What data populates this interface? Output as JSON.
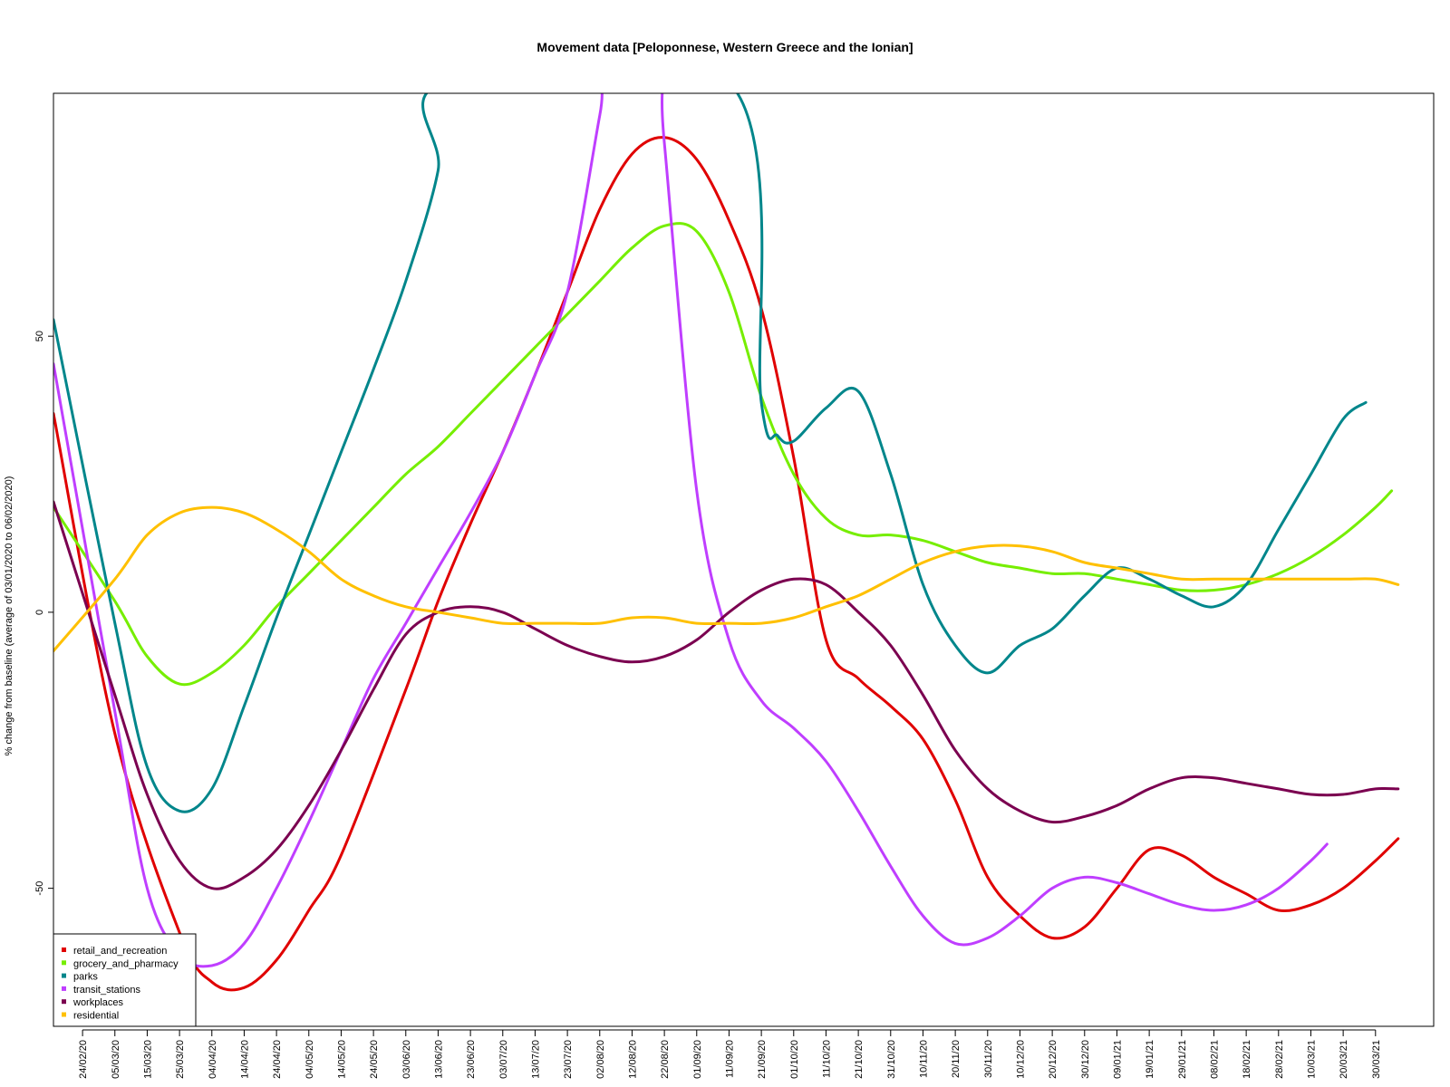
{
  "chart_data": {
    "type": "line",
    "title": "Movement data [Peloponnese, Western Greece and the Ionian]",
    "xlabel": "",
    "ylabel": "% change from baseline (average of 03/01/2020 to 06/02/2020)",
    "ylim": [
      -75,
      94
    ],
    "yticks": [
      -50,
      0,
      50
    ],
    "x_ticks": [
      "24/02/20",
      "05/03/20",
      "15/03/20",
      "25/03/20",
      "04/04/20",
      "14/04/20",
      "24/04/20",
      "04/05/20",
      "14/05/20",
      "24/05/20",
      "03/06/20",
      "13/06/20",
      "23/06/20",
      "03/07/20",
      "13/07/20",
      "23/07/20",
      "02/08/20",
      "12/08/20",
      "22/08/20",
      "01/09/20",
      "11/09/20",
      "21/09/20",
      "01/10/20",
      "11/10/20",
      "21/10/20",
      "31/10/20",
      "10/11/20",
      "20/11/20",
      "30/11/20",
      "10/12/20",
      "20/12/20",
      "30/12/20",
      "09/01/21",
      "19/01/21",
      "29/01/21",
      "08/02/21",
      "18/02/21",
      "28/02/21",
      "10/03/21",
      "20/03/21",
      "30/03/21"
    ],
    "legend": {
      "position": "bottom-left",
      "entries": [
        "retail_and_recreation",
        "grocery_and_pharmacy",
        "parks",
        "transit_stations",
        "workplaces",
        "residential"
      ]
    },
    "series": [
      {
        "name": "retail_and_recreation",
        "color": "#e00000",
        "x": [
          "15/02/20",
          "05/03/20",
          "25/03/20",
          "04/04/20",
          "14/04/20",
          "24/04/20",
          "04/05/20",
          "14/05/20",
          "03/06/20",
          "13/06/20",
          "23/06/20",
          "03/07/20",
          "13/07/20",
          "23/07/20",
          "02/08/20",
          "12/08/20",
          "22/08/20",
          "01/09/20",
          "11/09/20",
          "21/09/20",
          "01/10/20",
          "11/10/20",
          "21/10/20",
          "31/10/20",
          "10/11/20",
          "20/11/20",
          "30/11/20",
          "10/12/20",
          "20/12/20",
          "30/12/20",
          "09/01/21",
          "19/01/21",
          "29/01/21",
          "08/02/21",
          "18/02/21",
          "28/02/21",
          "10/03/21",
          "20/03/21",
          "30/03/21",
          "06/04/21"
        ],
        "values": [
          36,
          -22,
          -58,
          -67,
          -68,
          -63,
          -54,
          -44,
          -14,
          2,
          16,
          29,
          43,
          58,
          73,
          83,
          86,
          82,
          71,
          55,
          28,
          -5,
          -12,
          -17,
          -23,
          -34,
          -48,
          -55,
          -59,
          -57,
          -50,
          -43,
          -44,
          -48,
          -51,
          -54,
          -53,
          -50,
          -45,
          -41
        ]
      },
      {
        "name": "grocery_and_pharmacy",
        "color": "#76ee00",
        "x": [
          "15/02/20",
          "05/03/20",
          "15/03/20",
          "25/03/20",
          "04/04/20",
          "14/04/20",
          "24/04/20",
          "04/05/20",
          "14/05/20",
          "24/05/20",
          "03/06/20",
          "13/06/20",
          "23/06/20",
          "03/07/20",
          "13/07/20",
          "23/07/20",
          "02/08/20",
          "12/08/20",
          "22/08/20",
          "01/09/20",
          "11/09/20",
          "21/09/20",
          "01/10/20",
          "11/10/20",
          "21/10/20",
          "31/10/20",
          "10/11/20",
          "20/11/20",
          "30/11/20",
          "10/12/20",
          "20/12/20",
          "30/12/20",
          "09/01/21",
          "19/01/21",
          "29/01/21",
          "08/02/21",
          "18/02/21",
          "28/02/21",
          "10/03/21",
          "20/03/21",
          "30/03/21",
          "04/04/21"
        ],
        "values": [
          19,
          2,
          -8,
          -13,
          -11,
          -6,
          1,
          7,
          13,
          19,
          25,
          30,
          36,
          42,
          48,
          54,
          60,
          66,
          70,
          69,
          58,
          39,
          25,
          17,
          14,
          14,
          13,
          11,
          9,
          8,
          7,
          7,
          6,
          5,
          4,
          4,
          5,
          7,
          10,
          14,
          19,
          22
        ]
      },
      {
        "name": "parks",
        "color": "#00868b",
        "x": [
          "15/02/20",
          "05/03/20",
          "15/03/20",
          "25/03/20",
          "04/04/20",
          "14/04/20",
          "24/04/20",
          "04/05/20",
          "14/05/20",
          "24/05/20",
          "03/06/20",
          "13/06/20",
          "15/06/20",
          "11/09/20",
          "21/09/20",
          "26/09/20",
          "01/10/20",
          "11/10/20",
          "21/10/20",
          "31/10/20",
          "10/11/20",
          "20/11/20",
          "30/11/20",
          "10/12/20",
          "20/12/20",
          "30/12/20",
          "09/01/21",
          "19/01/21",
          "29/01/21",
          "08/02/21",
          "18/02/21",
          "28/02/21",
          "10/03/21",
          "20/03/21",
          "27/03/21"
        ],
        "values": [
          53,
          -2,
          -28,
          -36,
          -32,
          -17,
          -1,
          14,
          29,
          44,
          60,
          80,
          96,
          96,
          38,
          32,
          31,
          37,
          40,
          25,
          5,
          -6,
          -11,
          -6,
          -3,
          3,
          8,
          6,
          3,
          1,
          5,
          15,
          25,
          35,
          38
        ]
      },
      {
        "name": "transit_stations",
        "color": "#bf3eff",
        "x": [
          "15/02/20",
          "05/03/20",
          "15/03/20",
          "25/03/20",
          "04/04/20",
          "14/04/20",
          "24/04/20",
          "04/05/20",
          "14/05/20",
          "24/05/20",
          "03/06/20",
          "13/06/20",
          "23/06/20",
          "03/07/20",
          "13/07/20",
          "23/07/20",
          "02/08/20",
          "04/08/20",
          "20/08/20",
          "22/08/20",
          "01/09/20",
          "11/09/20",
          "21/09/20",
          "01/10/20",
          "11/10/20",
          "21/10/20",
          "31/10/20",
          "10/11/20",
          "20/11/20",
          "30/11/20",
          "10/12/20",
          "20/12/20",
          "30/12/20",
          "09/01/21",
          "19/01/21",
          "29/01/21",
          "08/02/21",
          "18/02/21",
          "28/02/21",
          "10/03/21",
          "15/03/21"
        ],
        "values": [
          45,
          -18,
          -50,
          -62,
          -64,
          -60,
          -50,
          -38,
          -25,
          -12,
          -2,
          8,
          18,
          29,
          43,
          58,
          90,
          96,
          96,
          85,
          22,
          -5,
          -16,
          -21,
          -27,
          -36,
          -46,
          -55,
          -60,
          -59,
          -55,
          -50,
          -48,
          -49,
          -51,
          -53,
          -54,
          -53,
          -50,
          -45,
          -42
        ]
      },
      {
        "name": "workplaces",
        "color": "#7b0050",
        "x": [
          "15/02/20",
          "05/03/20",
          "15/03/20",
          "25/03/20",
          "04/04/20",
          "14/04/20",
          "24/04/20",
          "04/05/20",
          "14/05/20",
          "24/05/20",
          "03/06/20",
          "13/06/20",
          "23/06/20",
          "03/07/20",
          "13/07/20",
          "23/07/20",
          "02/08/20",
          "12/08/20",
          "22/08/20",
          "01/09/20",
          "11/09/20",
          "21/09/20",
          "01/10/20",
          "11/10/20",
          "21/10/20",
          "31/10/20",
          "10/11/20",
          "20/11/20",
          "30/11/20",
          "10/12/20",
          "20/12/20",
          "30/12/20",
          "09/01/21",
          "19/01/21",
          "29/01/21",
          "08/02/21",
          "18/02/21",
          "28/02/21",
          "10/03/21",
          "20/03/21",
          "30/03/21",
          "06/04/21"
        ],
        "values": [
          20,
          -15,
          -33,
          -45,
          -50,
          -48,
          -43,
          -35,
          -25,
          -14,
          -4,
          0,
          1,
          0,
          -3,
          -6,
          -8,
          -9,
          -8,
          -5,
          0,
          4,
          6,
          5,
          0,
          -6,
          -15,
          -25,
          -32,
          -36,
          -38,
          -37,
          -35,
          -32,
          -30,
          -30,
          -31,
          -32,
          -33,
          -33,
          -32,
          -32
        ]
      },
      {
        "name": "residential",
        "color": "#ffc000",
        "x": [
          "15/02/20",
          "05/03/20",
          "15/03/20",
          "25/03/20",
          "04/04/20",
          "14/04/20",
          "24/04/20",
          "04/05/20",
          "14/05/20",
          "24/05/20",
          "03/06/20",
          "13/06/20",
          "23/06/20",
          "03/07/20",
          "13/07/20",
          "23/07/20",
          "02/08/20",
          "12/08/20",
          "22/08/20",
          "01/09/20",
          "11/09/20",
          "21/09/20",
          "01/10/20",
          "11/10/20",
          "21/10/20",
          "31/10/20",
          "10/11/20",
          "20/11/20",
          "30/11/20",
          "10/12/20",
          "20/12/20",
          "30/12/20",
          "09/01/21",
          "19/01/21",
          "29/01/21",
          "08/02/21",
          "18/02/21",
          "28/02/21",
          "10/03/21",
          "20/03/21",
          "30/03/21",
          "06/04/21"
        ],
        "values": [
          -7,
          6,
          14,
          18,
          19,
          18,
          15,
          11,
          6,
          3,
          1,
          0,
          -1,
          -2,
          -2,
          -2,
          -2,
          -1,
          -1,
          -2,
          -2,
          -2,
          -1,
          1,
          3,
          6,
          9,
          11,
          12,
          12,
          11,
          9,
          8,
          7,
          6,
          6,
          6,
          6,
          6,
          6,
          6,
          5
        ]
      }
    ]
  }
}
